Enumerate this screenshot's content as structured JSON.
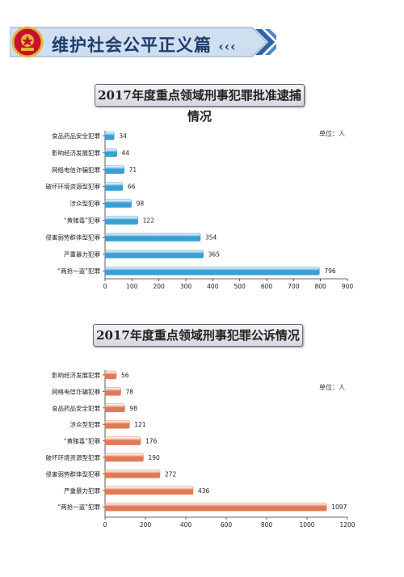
{
  "header": {
    "title": "维护社会公平正义篇",
    "chevrons": "‹‹‹"
  },
  "colors": {
    "banner": "#1f3a6b",
    "bar_blue": "#3a9fd4",
    "bar_orange": "#e07a55"
  },
  "chart_data": [
    {
      "type": "bar",
      "orientation": "horizontal",
      "title": "2017年度重点领域刑事犯罪批准逮捕情况",
      "unit_label": "单位：人",
      "categories": [
        "食品药品安全犯罪",
        "影响经济发展犯罪",
        "网络电信诈骗犯罪",
        "破坏环境资源型犯罪",
        "涉众型犯罪",
        "“黄赌毒”犯罪",
        "侵害弱势群体型犯罪",
        "严重暴力犯罪",
        "“两抢一盗”犯罪"
      ],
      "values": [
        34,
        44,
        71,
        66,
        98,
        122,
        354,
        365,
        796
      ],
      "xlim": [
        0,
        900
      ],
      "xticks": [
        0,
        100,
        200,
        300,
        400,
        500,
        600,
        700,
        800,
        900
      ],
      "color": "#3a9fd4"
    },
    {
      "type": "bar",
      "orientation": "horizontal",
      "title": "2017年度重点领域刑事犯罪公诉情况",
      "unit_label": "单位：人",
      "categories": [
        "影响经济发展犯罪",
        "网络电信诈骗犯罪",
        "食品药品安全犯罪",
        "涉众型犯罪",
        "“黄赌毒”犯罪",
        "破坏环境资源型犯罪",
        "侵害弱势群体型犯罪",
        "严重暴力犯罪",
        "“两抢一盗”犯罪"
      ],
      "values": [
        56,
        78,
        98,
        121,
        176,
        190,
        272,
        436,
        1097
      ],
      "xlim": [
        0,
        1200
      ],
      "xticks": [
        0,
        200,
        400,
        600,
        800,
        1000,
        1200
      ],
      "color": "#e07a55"
    }
  ]
}
